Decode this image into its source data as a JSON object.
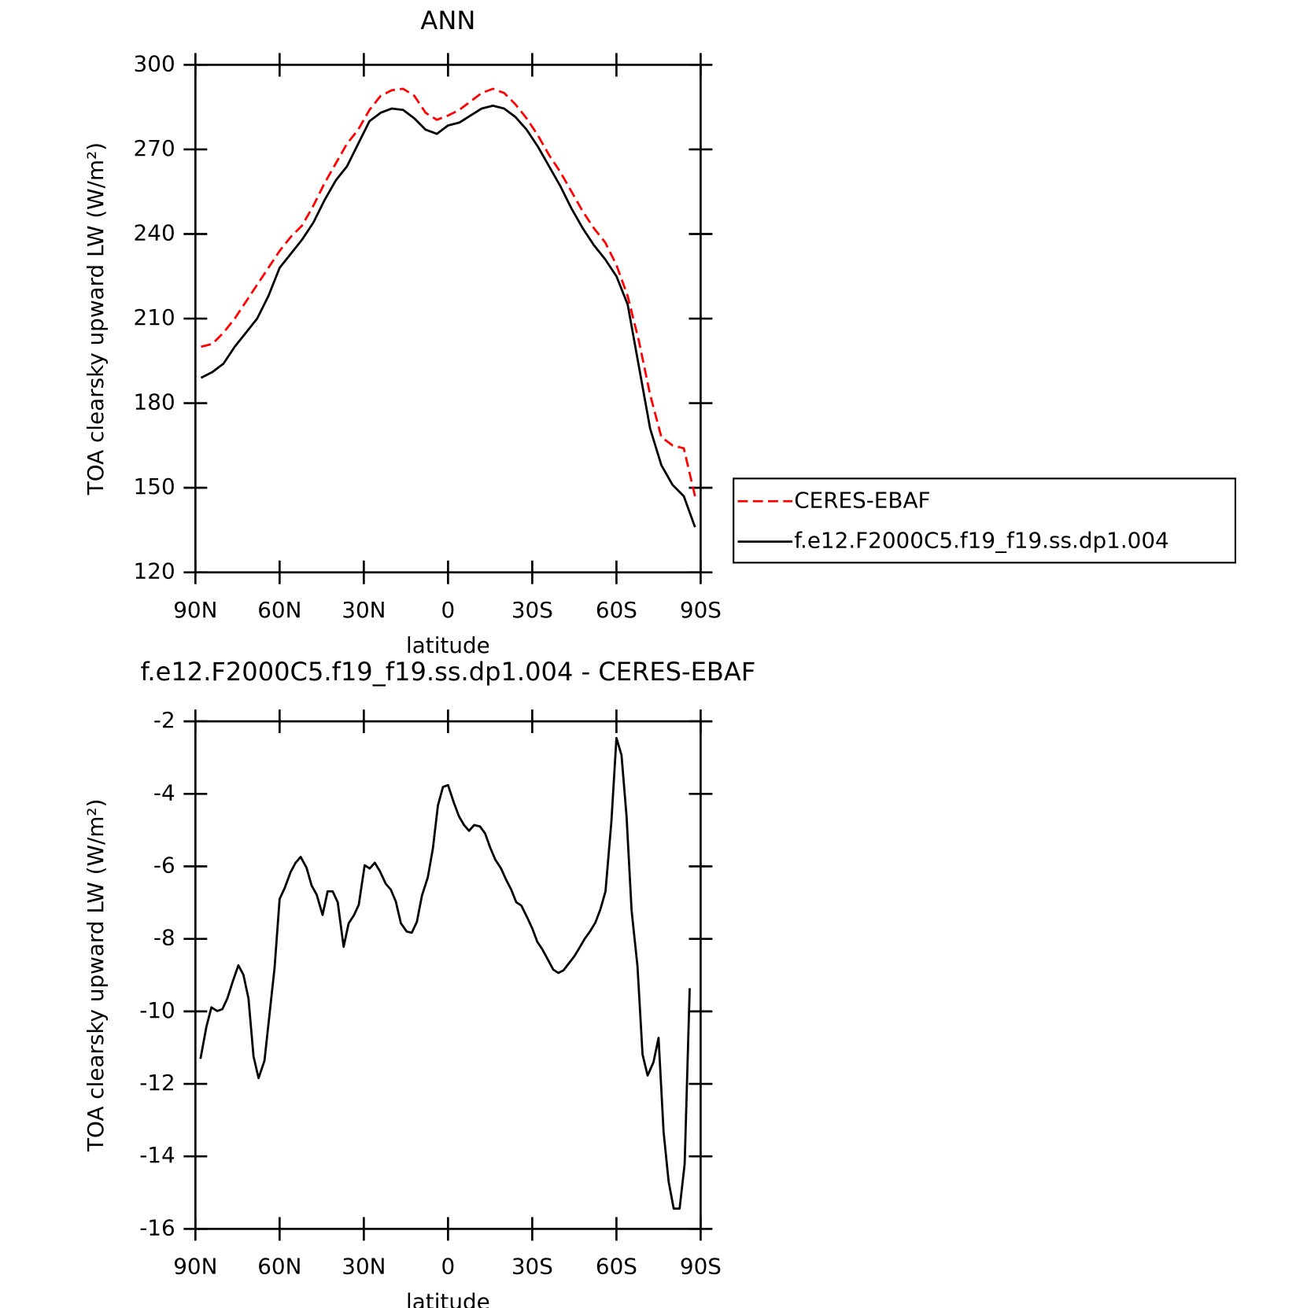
{
  "chart_data": [
    {
      "type": "line",
      "title": "ANN",
      "xlabel": "latitude",
      "ylabel": "TOA clearsky upward LW (W/m²)",
      "xlim": [
        90,
        -90
      ],
      "xticks": [
        {
          "value": 90,
          "label": "90N"
        },
        {
          "value": 60,
          "label": "60N"
        },
        {
          "value": 30,
          "label": "30N"
        },
        0,
        {
          "value": -30,
          "label": "30S"
        },
        {
          "value": -60,
          "label": "60S"
        },
        {
          "value": -90,
          "label": "90S"
        }
      ],
      "ylim": [
        120,
        300
      ],
      "yticks": [
        120,
        150,
        180,
        210,
        240,
        270,
        300
      ],
      "legend": "right",
      "x": [
        88,
        84,
        80,
        76,
        72,
        68,
        64,
        60,
        56,
        52,
        48,
        44,
        40,
        36,
        32,
        28,
        24,
        20,
        16,
        12,
        8,
        4,
        0,
        -4,
        -8,
        -12,
        -16,
        -20,
        -24,
        -28,
        -32,
        -36,
        -40,
        -44,
        -48,
        -52,
        -56,
        -60,
        -64,
        -68,
        -72,
        -76,
        -80,
        -84,
        -88
      ],
      "series": [
        {
          "name": "CERES-EBAF",
          "color": "#ff0000",
          "dash": "dashed",
          "values": [
            200,
            201,
            205,
            210,
            216,
            222,
            228,
            234,
            239,
            243,
            250,
            258,
            265,
            272,
            277,
            284,
            289,
            291,
            291.5,
            289,
            283,
            280.5,
            282,
            284,
            287,
            290,
            291.5,
            290,
            286,
            281,
            275,
            268,
            262,
            255,
            248,
            242,
            237,
            229,
            218,
            202,
            183,
            168,
            165,
            164,
            147
          ]
        },
        {
          "name": "f.e12.F2000C5.f19_f19.ss.dp1.004",
          "color": "#000000",
          "dash": "solid",
          "values": [
            189,
            191,
            194,
            200,
            205,
            210,
            218,
            228,
            233,
            238,
            244,
            252,
            259,
            264,
            272,
            280,
            283,
            284.5,
            284,
            281,
            277,
            275.5,
            278.5,
            279.5,
            282,
            284.5,
            285.5,
            284.5,
            281.5,
            277,
            271,
            264,
            257,
            249,
            242,
            236,
            231,
            225,
            215,
            193,
            171,
            158,
            151,
            147,
            136
          ]
        }
      ]
    },
    {
      "type": "line",
      "title": "f.e12.F2000C5.f19_f19.ss.dp1.004 - CERES-EBAF",
      "xlabel": "latitude",
      "ylabel": "TOA clearsky upward LW (W/m²)",
      "xlim": [
        90,
        -90
      ],
      "xticks": [
        {
          "value": 90,
          "label": "90N"
        },
        {
          "value": 60,
          "label": "60N"
        },
        {
          "value": 30,
          "label": "30N"
        },
        0,
        {
          "value": -30,
          "label": "30S"
        },
        {
          "value": -60,
          "label": "60S"
        },
        {
          "value": -90,
          "label": "90S"
        }
      ],
      "ylim": [
        -16,
        -2
      ],
      "yticks": [
        -16,
        -14,
        -12,
        -10,
        -8,
        -6,
        -4,
        -2
      ],
      "color": "#000000",
      "x": [
        88.2,
        86.1,
        84.3,
        82.2,
        80.4,
        78.6,
        76.8,
        74.7,
        72.9,
        71.1,
        69.3,
        67.5,
        65.4,
        63.6,
        61.8,
        60.0,
        58.2,
        56.1,
        54.3,
        52.5,
        50.4,
        48.6,
        46.8,
        44.7,
        42.9,
        41.1,
        39.3,
        37.2,
        35.4,
        33.6,
        31.8,
        29.7,
        27.9,
        26.1,
        24.3,
        22.2,
        20.4,
        18.6,
        16.8,
        14.7,
        12.9,
        11.1,
        9.3,
        7.2,
        5.4,
        3.6,
        1.8,
        0.0,
        -2.1,
        -3.9,
        -5.7,
        -7.5,
        -9.3,
        -11.4,
        -13.2,
        -15.0,
        -16.8,
        -18.9,
        -20.7,
        -22.5,
        -24.3,
        -26.1,
        -28.2,
        -30.0,
        -31.8,
        -33.6,
        -35.7,
        -37.5,
        -39.3,
        -41.1,
        -43.2,
        -45.0,
        -46.8,
        -48.6,
        -50.7,
        -52.5,
        -54.3,
        -56.1,
        -58.2,
        -60.0,
        -61.8,
        -63.6,
        -65.4,
        -67.5,
        -69.3,
        -71.1,
        -73.2,
        -75.0,
        -76.8,
        -78.6,
        -80.4,
        -82.5,
        -84.3,
        -86.1
      ],
      "values": [
        -11.31,
        -10.43,
        -9.89,
        -9.99,
        -9.94,
        -9.64,
        -9.2,
        -8.73,
        -8.99,
        -9.64,
        -11.24,
        -11.84,
        -11.36,
        -10.08,
        -8.8,
        -6.9,
        -6.6,
        -6.16,
        -5.9,
        -5.74,
        -6.04,
        -6.53,
        -6.78,
        -7.34,
        -6.69,
        -6.69,
        -6.99,
        -8.22,
        -7.57,
        -7.36,
        -7.06,
        -5.97,
        -6.06,
        -5.9,
        -6.13,
        -6.48,
        -6.64,
        -6.97,
        -7.57,
        -7.8,
        -7.83,
        -7.53,
        -6.81,
        -6.3,
        -5.51,
        -4.32,
        -3.81,
        -3.76,
        -4.25,
        -4.62,
        -4.86,
        -5.02,
        -4.86,
        -4.9,
        -5.09,
        -5.48,
        -5.81,
        -6.06,
        -6.37,
        -6.64,
        -6.99,
        -7.08,
        -7.41,
        -7.71,
        -8.08,
        -8.29,
        -8.59,
        -8.85,
        -8.94,
        -8.87,
        -8.66,
        -8.48,
        -8.25,
        -8.01,
        -7.78,
        -7.55,
        -7.18,
        -6.69,
        -4.76,
        -2.46,
        -2.93,
        -4.62,
        -7.22,
        -8.76,
        -11.19,
        -11.77,
        -11.4,
        -10.73,
        -13.33,
        -14.7,
        -15.44,
        -15.44,
        -14.21,
        -9.36
      ]
    }
  ]
}
